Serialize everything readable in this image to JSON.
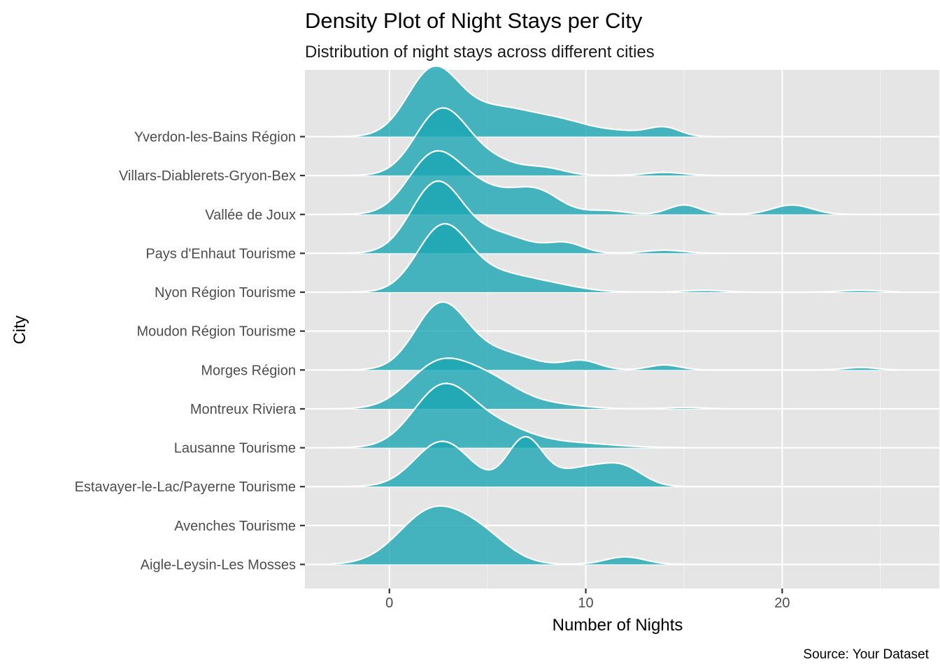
{
  "chart_data": {
    "type": "ridgeline",
    "title": "Density Plot of Night Stays per City",
    "subtitle": "Distribution of night stays across different cities",
    "xlabel": "Number of Nights",
    "ylabel": "City",
    "caption": "Source: Your Dataset",
    "xlim": [
      -4.3,
      28.0
    ],
    "xticks": [
      0,
      10,
      20
    ],
    "grid": true,
    "fill_color": "#1ca6b3",
    "categories": [
      "Aigle-Leysin-Les Mosses",
      "Avenches Tourisme",
      "Estavayer-le-Lac/Payerne Tourisme",
      "Lausanne Tourisme",
      "Montreux Riviera",
      "Morges Région",
      "Moudon Région Tourisme",
      "Nyon Région Tourisme",
      "Pays d'Enhaut Tourisme",
      "Vallée de Joux",
      "Villars-Diablerets-Gryon-Bex",
      "Yverdon-les-Bains Région"
    ],
    "series": [
      {
        "category": "Aigle-Leysin-Les Mosses",
        "range": [
          -3.0,
          15.0
        ],
        "peaks": [
          [
            2.2,
            0.85,
            1.7
          ],
          [
            4.8,
            0.35,
            1.4
          ],
          [
            12.0,
            0.12,
            1.0
          ]
        ]
      },
      {
        "category": "Avenches Tourisme",
        "range": [
          0,
          0
        ],
        "peaks": []
      },
      {
        "category": "Estavayer-le-Lac/Payerne Tourisme",
        "range": [
          -3.0,
          15.0
        ],
        "peaks": [
          [
            2.7,
            0.72,
            1.4
          ],
          [
            6.9,
            0.75,
            0.9
          ],
          [
            10.0,
            0.3,
            1.5
          ],
          [
            12.0,
            0.22,
            1.0
          ]
        ]
      },
      {
        "category": "Lausanne Tourisme",
        "range": [
          -3.0,
          15.0
        ],
        "peaks": [
          [
            2.7,
            0.95,
            1.5
          ],
          [
            5.5,
            0.3,
            1.6
          ],
          [
            9.0,
            0.08,
            2.2
          ]
        ]
      },
      {
        "category": "Montreux Riviera",
        "range": [
          -3.0,
          17.0
        ],
        "peaks": [
          [
            2.4,
            0.65,
            1.5
          ],
          [
            5.0,
            0.45,
            1.6
          ],
          [
            8.5,
            0.06,
            1.5
          ],
          [
            15.0,
            0.02,
            1.0
          ]
        ]
      },
      {
        "category": "Morges Région",
        "range": [
          -3.0,
          26.0
        ],
        "peaks": [
          [
            2.6,
            1.0,
            1.3
          ],
          [
            5.5,
            0.28,
            1.8
          ],
          [
            9.8,
            0.14,
            0.9
          ],
          [
            14.0,
            0.08,
            0.8
          ],
          [
            24.0,
            0.04,
            0.8
          ]
        ]
      },
      {
        "category": "Moudon Région Tourisme",
        "range": [
          0,
          0
        ],
        "peaks": []
      },
      {
        "category": "Nyon Région Tourisme",
        "range": [
          -3.0,
          26.0
        ],
        "peaks": [
          [
            2.7,
            1.0,
            1.3
          ],
          [
            5.5,
            0.28,
            1.8
          ],
          [
            8.5,
            0.08,
            1.5
          ],
          [
            16.0,
            0.03,
            1.0
          ],
          [
            24.0,
            0.03,
            1.0
          ]
        ]
      },
      {
        "category": "Pays d'Enhaut Tourisme",
        "range": [
          -3.0,
          17.0
        ],
        "peaks": [
          [
            2.4,
            1.1,
            1.3
          ],
          [
            5.5,
            0.3,
            1.6
          ],
          [
            9.0,
            0.15,
            0.9
          ],
          [
            14.0,
            0.05,
            1.0
          ]
        ]
      },
      {
        "category": "Vallée de Joux",
        "range": [
          -3.0,
          23.5
        ],
        "peaks": [
          [
            2.2,
            0.85,
            1.3
          ],
          [
            4.5,
            0.4,
            1.6
          ],
          [
            7.5,
            0.35,
            1.2
          ],
          [
            11.0,
            0.06,
            1.0
          ],
          [
            15.0,
            0.15,
            0.8
          ],
          [
            20.5,
            0.15,
            1.0
          ]
        ]
      },
      {
        "category": "Villars-Diablerets-Gryon-Bex",
        "range": [
          -3.0,
          17.0
        ],
        "peaks": [
          [
            2.6,
            1.0,
            1.3
          ],
          [
            5.0,
            0.25,
            1.5
          ],
          [
            8.0,
            0.1,
            1.0
          ],
          [
            14.0,
            0.05,
            1.0
          ]
        ]
      },
      {
        "category": "Yverdon-les-Bains Région",
        "range": [
          -3.0,
          17.0
        ],
        "peaks": [
          [
            2.2,
            1.0,
            1.3
          ],
          [
            5.5,
            0.45,
            2.0
          ],
          [
            9.0,
            0.18,
            1.5
          ],
          [
            12.0,
            0.07,
            1.2
          ],
          [
            14.0,
            0.14,
            0.8
          ]
        ]
      }
    ]
  }
}
